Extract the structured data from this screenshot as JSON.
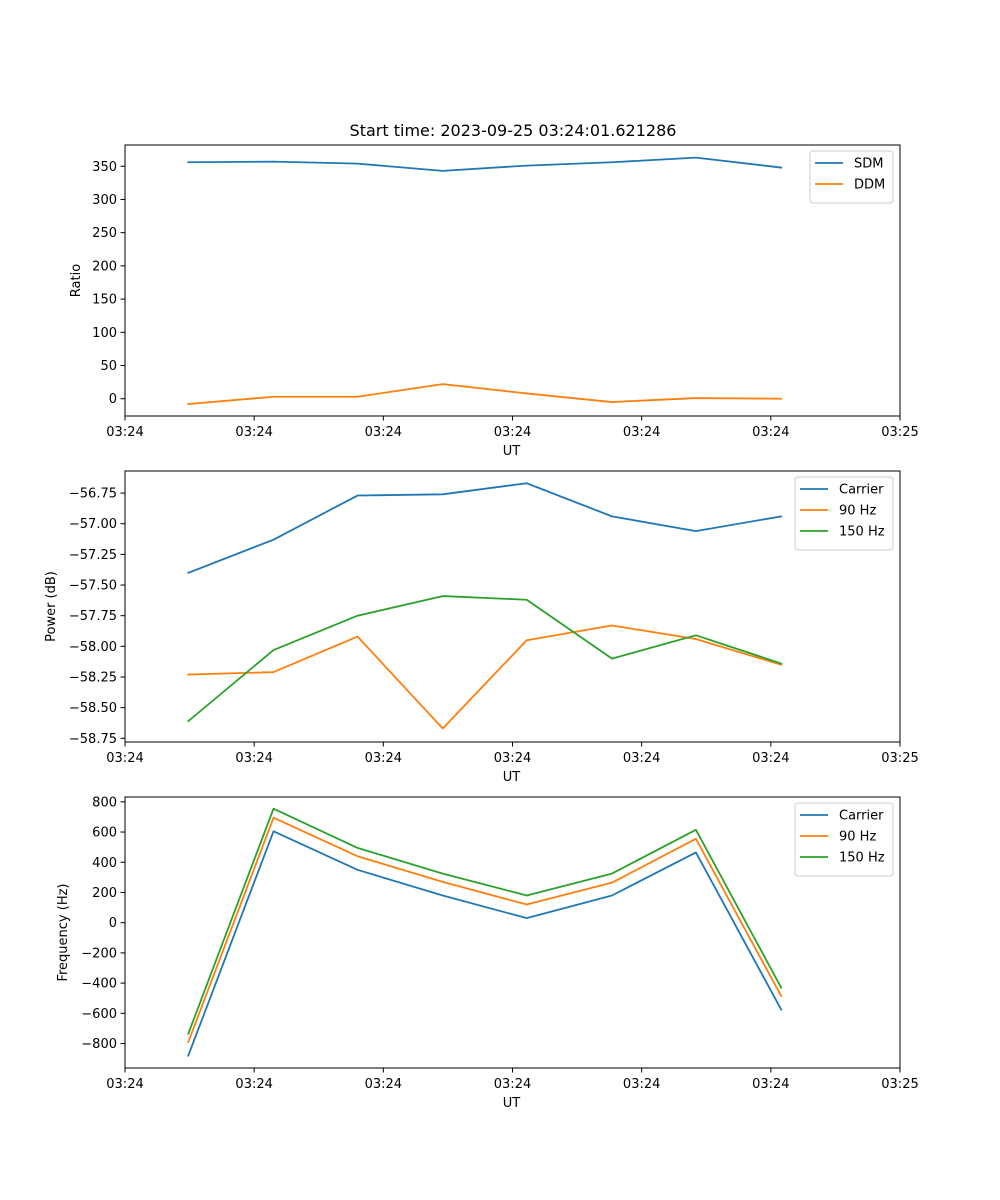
{
  "figure": {
    "title": "Start time: 2023-09-25 03:24:01.621286"
  },
  "colors": {
    "blue": "#1f77b4",
    "orange": "#ff7f0e",
    "green": "#2ca02c"
  },
  "chart_data": [
    {
      "type": "line",
      "title": "Start time: 2023-09-25 03:24:01.621286",
      "xlabel": "UT",
      "ylabel": "Ratio",
      "xlim": [
        0,
        6
      ],
      "x_tick_positions": [
        0,
        1,
        2,
        3,
        4,
        5,
        6
      ],
      "x_tick_labels": [
        "03:24",
        "03:24",
        "03:24",
        "03:24",
        "03:24",
        "03:24",
        "03:25"
      ],
      "ylim": [
        -26,
        382
      ],
      "y_ticks": [
        0,
        50,
        100,
        150,
        200,
        250,
        300,
        350
      ],
      "y_tick_labels": [
        "0",
        "50",
        "100",
        "150",
        "200",
        "250",
        "300",
        "350"
      ],
      "x": [
        0.49,
        1.15,
        1.8,
        2.46,
        3.11,
        3.77,
        4.42,
        5.08
      ],
      "legend_position": "upper-right",
      "series": [
        {
          "name": "SDM",
          "color": "#1f77b4",
          "values": [
            356,
            357,
            354,
            343,
            351,
            356,
            363,
            348
          ]
        },
        {
          "name": "DDM",
          "color": "#ff7f0e",
          "values": [
            -8,
            3,
            3,
            22,
            8,
            -5,
            1,
            0
          ]
        }
      ]
    },
    {
      "type": "line",
      "xlabel": "UT",
      "ylabel": "Power (dB)",
      "xlim": [
        0,
        6
      ],
      "x_tick_positions": [
        0,
        1,
        2,
        3,
        4,
        5,
        6
      ],
      "x_tick_labels": [
        "03:24",
        "03:24",
        "03:24",
        "03:24",
        "03:24",
        "03:24",
        "03:25"
      ],
      "ylim": [
        -58.78,
        -56.57
      ],
      "y_ticks": [
        -58.75,
        -58.5,
        -58.25,
        -58.0,
        -57.75,
        -57.5,
        -57.25,
        -57.0,
        -56.75
      ],
      "y_tick_labels": [
        "−58.75",
        "−58.50",
        "−58.25",
        "−58.00",
        "−57.75",
        "−57.50",
        "−57.25",
        "−57.00",
        "−56.75"
      ],
      "x": [
        0.49,
        1.15,
        1.8,
        2.46,
        3.11,
        3.77,
        4.42,
        5.08
      ],
      "legend_position": "upper-right",
      "series": [
        {
          "name": "Carrier",
          "color": "#1f77b4",
          "values": [
            -57.4,
            -57.13,
            -56.77,
            -56.76,
            -56.67,
            -56.94,
            -57.06,
            -56.94
          ]
        },
        {
          "name": "90 Hz",
          "color": "#ff7f0e",
          "values": [
            -58.23,
            -58.21,
            -57.92,
            -58.67,
            -57.95,
            -57.83,
            -57.94,
            -58.15
          ]
        },
        {
          "name": "150 Hz",
          "color": "#2ca02c",
          "values": [
            -58.61,
            -58.03,
            -57.75,
            -57.59,
            -57.62,
            -58.1,
            -57.91,
            -58.14
          ]
        }
      ]
    },
    {
      "type": "line",
      "xlabel": "UT",
      "ylabel": "Frequency (Hz)",
      "xlim": [
        0,
        6
      ],
      "x_tick_positions": [
        0,
        1,
        2,
        3,
        4,
        5,
        6
      ],
      "x_tick_labels": [
        "03:24",
        "03:24",
        "03:24",
        "03:24",
        "03:24",
        "03:24",
        "03:25"
      ],
      "ylim": [
        -962,
        832
      ],
      "y_ticks": [
        -800,
        -600,
        -400,
        -200,
        0,
        200,
        400,
        600,
        800
      ],
      "y_tick_labels": [
        "−800",
        "−600",
        "−400",
        "−200",
        "0",
        "200",
        "400",
        "600",
        "800"
      ],
      "x": [
        0.49,
        1.15,
        1.8,
        2.46,
        3.11,
        3.77,
        4.42,
        5.08
      ],
      "legend_position": "upper-right",
      "series": [
        {
          "name": "Carrier",
          "color": "#1f77b4",
          "values": [
            -880,
            605,
            350,
            180,
            30,
            180,
            465,
            -575
          ]
        },
        {
          "name": "90 Hz",
          "color": "#ff7f0e",
          "values": [
            -790,
            695,
            440,
            270,
            120,
            265,
            555,
            -485
          ]
        },
        {
          "name": "150 Hz",
          "color": "#2ca02c",
          "values": [
            -735,
            755,
            495,
            325,
            180,
            325,
            615,
            -430
          ]
        }
      ]
    }
  ]
}
